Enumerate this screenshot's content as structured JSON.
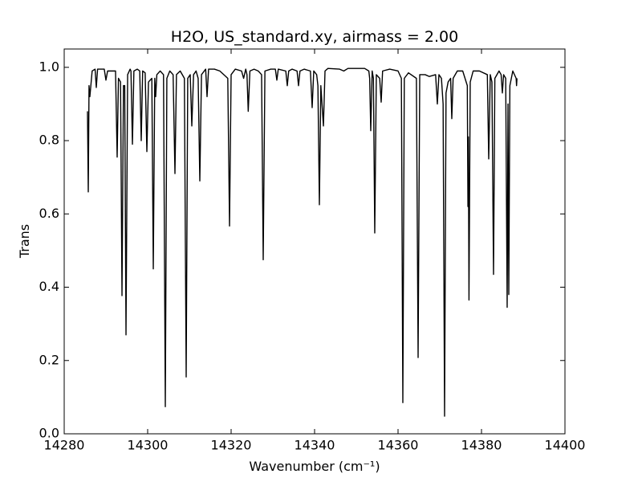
{
  "chart_data": {
    "type": "line",
    "title": "H2O, US_standard.xy, airmass = 2.00",
    "xlabel": "Wavenumber (cm⁻¹)",
    "ylabel": "Trans",
    "color": "#000000",
    "xlim": [
      14280,
      14400
    ],
    "ylim": [
      0,
      1.05
    ],
    "xticks": [
      14280,
      14300,
      14320,
      14340,
      14360,
      14380,
      14400
    ],
    "yticks": [
      {
        "value": 0,
        "label": "0.0"
      },
      0.2,
      0.4,
      0.6,
      0.8,
      {
        "value": 1,
        "label": "1.0"
      }
    ],
    "grid": false,
    "x": [
      14285.58,
      14285.77,
      14285.95,
      14286.15,
      14286.7,
      14287.4,
      14287.69,
      14288.0,
      14289.6,
      14290.0,
      14290.4,
      14292.3,
      14292.69,
      14293.0,
      14293.5,
      14293.85,
      14294.2,
      14294.5,
      14294.81,
      14295.2,
      14295.8,
      14296.0,
      14296.35,
      14296.7,
      14297.5,
      14298.1,
      14298.46,
      14298.8,
      14299.4,
      14299.81,
      14300.2,
      14301.0,
      14301.35,
      14301.7,
      14301.92,
      14302.2,
      14303.0,
      14303.8,
      14304.23,
      14304.6,
      14305.3,
      14306.1,
      14306.54,
      14306.9,
      14307.8,
      14308.8,
      14309.23,
      14309.6,
      14310.2,
      14310.58,
      14311.0,
      14311.6,
      14312.1,
      14312.5,
      14312.9,
      14313.9,
      14314.23,
      14314.6,
      14316.0,
      14317.3,
      14319.2,
      14319.62,
      14320.0,
      14321.0,
      14322.5,
      14323.0,
      14323.5,
      14323.8,
      14324.1,
      14324.5,
      14325.5,
      14326.5,
      14327.3,
      14327.69,
      14328.1,
      14329.5,
      14330.6,
      14330.96,
      14331.3,
      14333.1,
      14333.46,
      14333.8,
      14334.6,
      14335.8,
      14336.15,
      14336.5,
      14337.5,
      14339.0,
      14339.42,
      14339.8,
      14340.5,
      14340.8,
      14341.15,
      14341.5,
      14342.12,
      14342.5,
      14343.2,
      14346.0,
      14347.0,
      14348.0,
      14352.0,
      14353.0,
      14353.2,
      14353.46,
      14353.8,
      14354.1,
      14354.42,
      14354.8,
      14355.6,
      14355.96,
      14356.3,
      14358.0,
      14360.0,
      14360.8,
      14361.15,
      14361.5,
      14362.5,
      14364.4,
      14364.81,
      14365.2,
      14366.5,
      14367.5,
      14369.0,
      14369.42,
      14369.8,
      14370.4,
      14370.8,
      14371.15,
      14371.5,
      14372.0,
      14372.6,
      14372.88,
      14373.2,
      14374.2,
      14375.5,
      14376.6,
      14376.75,
      14376.85,
      14377.0,
      14377.3,
      14378.0,
      14379.5,
      14381.4,
      14381.73,
      14382.1,
      14382.5,
      14382.88,
      14383.2,
      14384.2,
      14384.7,
      14385.0,
      14385.3,
      14385.8,
      14386.15,
      14386.35,
      14386.54,
      14386.8,
      14387.5,
      14388.3,
      14388.4,
      14388.5
    ],
    "values": [
      0.88,
      0.66,
      0.95,
      0.92,
      0.99,
      0.995,
      0.945,
      0.995,
      0.995,
      0.965,
      0.99,
      0.99,
      0.755,
      0.97,
      0.96,
      0.377,
      0.95,
      0.95,
      0.27,
      0.98,
      0.995,
      0.99,
      0.79,
      0.99,
      0.995,
      0.99,
      0.8,
      0.99,
      0.985,
      0.77,
      0.96,
      0.97,
      0.45,
      0.97,
      0.92,
      0.98,
      0.99,
      0.98,
      0.074,
      0.97,
      0.99,
      0.98,
      0.71,
      0.98,
      0.99,
      0.97,
      0.155,
      0.97,
      0.98,
      0.84,
      0.98,
      0.99,
      0.97,
      0.69,
      0.98,
      0.995,
      0.92,
      0.995,
      0.995,
      0.99,
      0.97,
      0.567,
      0.98,
      0.995,
      0.99,
      0.97,
      0.995,
      0.98,
      0.88,
      0.99,
      0.995,
      0.99,
      0.98,
      0.475,
      0.99,
      0.995,
      0.995,
      0.965,
      0.995,
      0.99,
      0.95,
      0.99,
      0.995,
      0.99,
      0.95,
      0.99,
      0.995,
      0.99,
      0.89,
      0.99,
      0.98,
      0.95,
      0.625,
      0.95,
      0.84,
      0.99,
      0.997,
      0.995,
      0.99,
      0.997,
      0.997,
      0.99,
      0.97,
      0.827,
      0.99,
      0.97,
      0.548,
      0.98,
      0.97,
      0.905,
      0.99,
      0.995,
      0.99,
      0.97,
      0.085,
      0.97,
      0.985,
      0.97,
      0.208,
      0.98,
      0.98,
      0.975,
      0.98,
      0.9,
      0.98,
      0.97,
      0.9,
      0.048,
      0.93,
      0.96,
      0.97,
      0.86,
      0.97,
      0.99,
      0.99,
      0.95,
      0.62,
      0.81,
      0.365,
      0.96,
      0.99,
      0.99,
      0.98,
      0.75,
      0.98,
      0.96,
      0.435,
      0.97,
      0.99,
      0.98,
      0.93,
      0.98,
      0.97,
      0.345,
      0.9,
      0.38,
      0.95,
      0.99,
      0.97,
      0.95,
      0.97
    ]
  }
}
